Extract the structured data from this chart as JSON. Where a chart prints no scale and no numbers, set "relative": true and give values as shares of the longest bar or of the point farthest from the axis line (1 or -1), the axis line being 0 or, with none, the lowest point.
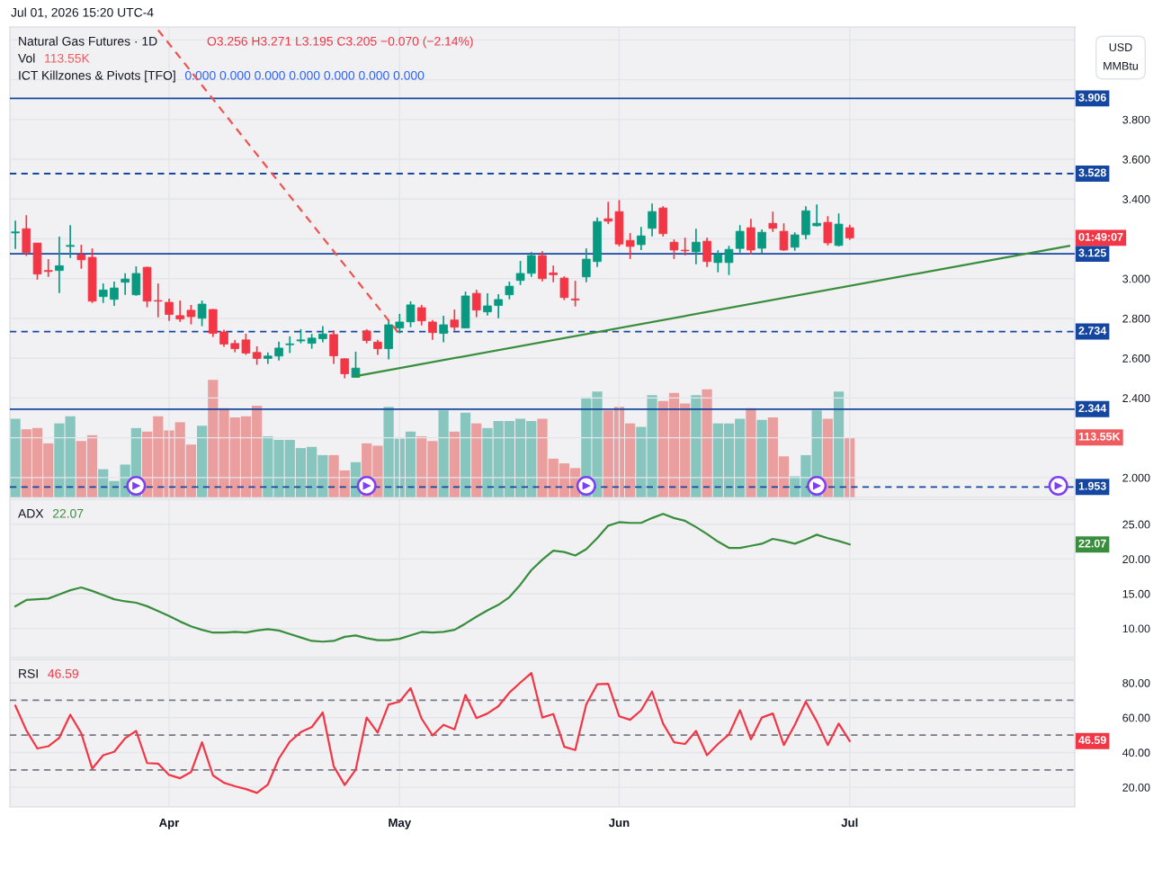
{
  "chart_data": [
    {
      "type": "candlestick",
      "title": "Natural Gas Futures · 1D",
      "ylabel": "USD\nMMBtu",
      "categories": [
        null,
        null,
        null,
        null,
        null,
        null,
        null,
        null,
        null,
        null,
        null,
        null,
        null,
        null,
        null,
        null,
        null,
        null,
        null,
        null,
        null,
        null,
        null,
        null,
        null,
        null,
        null,
        null,
        null,
        null,
        null,
        null,
        null,
        null,
        null,
        null,
        null,
        null,
        null,
        null,
        null,
        null,
        null,
        null,
        null,
        null,
        null,
        null,
        null,
        null,
        null,
        null,
        null,
        null,
        null,
        null,
        null,
        null,
        null,
        null,
        null,
        null,
        null,
        null,
        null,
        null,
        null,
        null,
        null,
        null,
        null,
        null,
        null,
        null,
        null,
        null,
        null,
        null,
        null,
        null,
        null,
        null,
        null,
        null,
        null,
        null,
        null,
        null,
        null,
        null,
        null,
        null,
        null,
        null,
        null,
        null,
        null
      ],
      "ohlc": [
        [
          3.23,
          3.292,
          3.149,
          3.235
        ],
        [
          3.251,
          3.319,
          3.114,
          3.131
        ],
        [
          3.179,
          3.18,
          2.995,
          3.023
        ],
        [
          3.041,
          3.098,
          3.009,
          3.036
        ],
        [
          3.041,
          3.211,
          2.928,
          3.065
        ],
        [
          3.162,
          3.269,
          3.104,
          3.167
        ],
        [
          3.119,
          3.17,
          3.05,
          3.095
        ],
        [
          3.107,
          3.152,
          2.878,
          2.887
        ],
        [
          2.91,
          2.976,
          2.878,
          2.943
        ],
        [
          2.896,
          2.985,
          2.863,
          2.953
        ],
        [
          2.982,
          3.027,
          2.919,
          2.998
        ],
        [
          2.919,
          3.062,
          2.914,
          3.026
        ],
        [
          3.057,
          3.06,
          2.856,
          2.887
        ],
        [
          2.89,
          2.976,
          2.806,
          2.887
        ],
        [
          2.881,
          2.899,
          2.788,
          2.82
        ],
        [
          2.814,
          2.89,
          2.783,
          2.797
        ],
        [
          2.841,
          2.868,
          2.77,
          2.809
        ],
        [
          2.801,
          2.89,
          2.761,
          2.872
        ],
        [
          2.845,
          2.847,
          2.707,
          2.725
        ],
        [
          2.732,
          2.743,
          2.657,
          2.671
        ],
        [
          2.674,
          2.692,
          2.63,
          2.648
        ],
        [
          2.692,
          2.723,
          2.617,
          2.626
        ],
        [
          2.629,
          2.66,
          2.567,
          2.599
        ],
        [
          2.599,
          2.629,
          2.571,
          2.611
        ],
        [
          2.611,
          2.683,
          2.588,
          2.651
        ],
        [
          2.668,
          2.71,
          2.626,
          2.672
        ],
        [
          2.687,
          2.746,
          2.675,
          2.692
        ],
        [
          2.675,
          2.722,
          2.648,
          2.701
        ],
        [
          2.698,
          2.762,
          2.68,
          2.722
        ],
        [
          2.719,
          2.74,
          2.571,
          2.612
        ],
        [
          2.597,
          2.6,
          2.499,
          2.522
        ],
        [
          2.504,
          2.633,
          2.503,
          2.55
        ],
        [
          2.737,
          2.746,
          2.675,
          2.689
        ],
        [
          2.681,
          2.693,
          2.617,
          2.648
        ],
        [
          2.648,
          2.795,
          2.594,
          2.768
        ],
        [
          2.752,
          2.823,
          2.725,
          2.782
        ],
        [
          2.783,
          2.886,
          2.756,
          2.868
        ],
        [
          2.854,
          2.868,
          2.765,
          2.788
        ],
        [
          2.782,
          2.792,
          2.693,
          2.729
        ],
        [
          2.725,
          2.814,
          2.68,
          2.768
        ],
        [
          2.792,
          2.845,
          2.738,
          2.756
        ],
        [
          2.752,
          2.935,
          2.75,
          2.913
        ],
        [
          2.926,
          2.944,
          2.806,
          2.842
        ],
        [
          2.833,
          2.926,
          2.815,
          2.863
        ],
        [
          2.865,
          2.922,
          2.801,
          2.895
        ],
        [
          2.919,
          2.985,
          2.896,
          2.962
        ],
        [
          2.991,
          3.089,
          2.968,
          3.026
        ],
        [
          3.027,
          3.134,
          3.009,
          3.116
        ],
        [
          3.116,
          3.138,
          2.986,
          3.0
        ],
        [
          3.029,
          3.066,
          2.982,
          3.02
        ],
        [
          3.003,
          3.012,
          2.892,
          2.905
        ],
        [
          2.898,
          2.989,
          2.86,
          2.893
        ],
        [
          3.009,
          3.152,
          2.982,
          3.098
        ],
        [
          3.086,
          3.307,
          3.059,
          3.287
        ],
        [
          3.301,
          3.386,
          3.275,
          3.289
        ],
        [
          3.337,
          3.395,
          3.162,
          3.174
        ],
        [
          3.192,
          3.229,
          3.099,
          3.162
        ],
        [
          3.171,
          3.26,
          3.144,
          3.215
        ],
        [
          3.253,
          3.377,
          3.212,
          3.337
        ],
        [
          3.355,
          3.364,
          3.212,
          3.226
        ],
        [
          3.183,
          3.197,
          3.099,
          3.144
        ],
        [
          3.143,
          3.206,
          3.117,
          3.14
        ],
        [
          3.135,
          3.251,
          3.072,
          3.183
        ],
        [
          3.188,
          3.206,
          3.059,
          3.086
        ],
        [
          3.081,
          3.143,
          3.032,
          3.12
        ],
        [
          3.081,
          3.165,
          3.018,
          3.147
        ],
        [
          3.152,
          3.269,
          3.131,
          3.238
        ],
        [
          3.256,
          3.301,
          3.122,
          3.144
        ],
        [
          3.153,
          3.247,
          3.126,
          3.233
        ],
        [
          3.278,
          3.337,
          3.235,
          3.253
        ],
        [
          3.238,
          3.278,
          3.14,
          3.144
        ],
        [
          3.158,
          3.233,
          3.14,
          3.22
        ],
        [
          3.221,
          3.364,
          3.198,
          3.341
        ],
        [
          3.266,
          3.373,
          3.262,
          3.278
        ],
        [
          3.283,
          3.314,
          3.167,
          3.18
        ],
        [
          3.167,
          3.328,
          3.162,
          3.274
        ],
        [
          3.256,
          3.271,
          3.195,
          3.205
        ],
        null,
        null,
        null,
        null,
        null,
        null,
        null,
        null,
        null,
        null,
        null,
        null,
        null,
        null,
        null,
        null,
        null,
        null,
        null,
        null
      ],
      "colors": [
        "#089981",
        "#f23645",
        "#f23645",
        "#f23645",
        "#089981",
        "#089981",
        "#f23645",
        "#f23645",
        "#089981",
        "#089981",
        "#089981",
        "#089981",
        "#f23645",
        "#f23645",
        "#f23645",
        "#f23645",
        "#f23645",
        "#089981",
        "#f23645",
        "#f23645",
        "#f23645",
        "#f23645",
        "#f23645",
        "#089981",
        "#089981",
        "#089981",
        "#089981",
        "#089981",
        "#089981",
        "#f23645",
        "#f23645",
        "#089981",
        "#f23645",
        "#f23645",
        "#089981",
        "#089981",
        "#089981",
        "#f23645",
        "#f23645",
        "#089981",
        "#f23645",
        "#089981",
        "#f23645",
        "#089981",
        "#089981",
        "#089981",
        "#089981",
        "#089981",
        "#f23645",
        "#f23645",
        "#f23645",
        "#f23645",
        "#089981",
        "#089981",
        "#f23645",
        "#f23645",
        "#f23645",
        "#089981",
        "#089981",
        "#f23645",
        "#f23645",
        "#f23645",
        "#089981",
        "#f23645",
        "#089981",
        "#089981",
        "#089981",
        "#f23645",
        "#089981",
        "#f23645",
        "#f23645",
        "#089981",
        "#089981",
        "#089981",
        "#f23645",
        "#089981",
        "#f23645",
        null,
        null,
        null,
        null,
        null,
        null,
        null,
        null,
        null,
        null,
        null,
        null,
        null,
        null,
        null,
        null,
        null,
        null,
        null,
        null
      ],
      "series": [
        {
          "type": "line",
          "color": "#ef5350",
          "line_style": "dashed",
          "values": [
            null,
            null,
            null,
            null,
            null,
            null,
            null,
            null,
            null,
            null,
            null,
            null,
            null,
            4.25,
            null,
            null,
            null,
            null,
            null,
            null,
            null,
            null,
            null,
            null,
            null,
            null,
            null,
            null,
            null,
            null,
            null,
            null,
            null,
            null,
            null,
            2.72,
            null,
            null,
            null,
            null,
            null,
            null,
            null,
            null,
            null,
            null,
            null,
            null,
            null,
            null,
            null,
            null,
            null,
            null,
            null,
            null,
            null,
            null,
            null,
            null,
            null,
            null,
            null,
            null,
            null,
            null,
            null,
            null,
            null,
            null,
            null,
            null,
            null,
            null,
            null,
            null,
            null,
            null,
            null,
            null,
            null,
            null,
            null,
            null,
            null,
            null,
            null,
            null,
            null,
            null,
            null,
            null,
            null,
            null,
            null,
            null,
            null
          ]
        },
        {
          "type": "line",
          "color": "#388e3c",
          "line_style": "solid",
          "values": [
            null,
            null,
            null,
            null,
            null,
            null,
            null,
            null,
            null,
            null,
            null,
            null,
            null,
            null,
            null,
            null,
            null,
            null,
            null,
            null,
            null,
            null,
            null,
            null,
            null,
            null,
            null,
            null,
            null,
            null,
            null,
            2.51,
            null,
            null,
            null,
            null,
            null,
            null,
            null,
            null,
            null,
            null,
            null,
            null,
            null,
            null,
            null,
            null,
            null,
            null,
            null,
            null,
            null,
            null,
            null,
            null,
            null,
            null,
            null,
            null,
            null,
            null,
            null,
            null,
            null,
            null,
            null,
            null,
            null,
            null,
            null,
            null,
            null,
            null,
            null,
            null,
            null,
            null,
            null,
            null,
            null,
            null,
            null,
            null,
            null,
            null,
            null,
            null,
            null,
            null,
            null,
            null,
            null,
            null,
            null,
            null,
            3.165
          ]
        }
      ],
      "ylim": [
        1.9,
        4.265
      ],
      "yticks": [
        {
          "value": 2.0,
          "label": "2.000"
        },
        {
          "value": 2.2,
          "label": null
        },
        {
          "value": 2.4,
          "label": "2.400"
        },
        {
          "value": 2.6,
          "label": "2.600"
        },
        {
          "value": 2.8,
          "label": "2.800"
        },
        {
          "value": 3.0,
          "label": "3.000"
        },
        {
          "value": 3.2,
          "label": null
        },
        {
          "value": 3.4,
          "label": "3.400"
        },
        {
          "value": 3.6,
          "label": "3.600"
        },
        {
          "value": 3.8,
          "label": "3.800"
        },
        {
          "value": 4.0,
          "label": null
        },
        {
          "value": 4.2,
          "label": null
        }
      ],
      "tick_labels": "y",
      "grid": true,
      "ref_lines": [
        {
          "axis": "y",
          "value": 3.906,
          "label": "3.906",
          "color": "#1546a0",
          "line_style": "solid"
        },
        {
          "axis": "y",
          "value": 3.528,
          "label": "3.528",
          "color": "#1546a0",
          "line_style": "dashed"
        },
        {
          "axis": "y",
          "value": 3.125,
          "label": "3.125",
          "color": "#1546a0",
          "line_style": "solid"
        },
        {
          "axis": "y",
          "value": 2.734,
          "label": "2.734",
          "color": "#1546a0",
          "line_style": "dashed"
        },
        {
          "axis": "y",
          "value": 2.344,
          "label": "2.344",
          "color": "#1546a0",
          "line_style": "solid"
        },
        {
          "axis": "y",
          "value": 1.953,
          "label": "1.953",
          "color": "#1546a0",
          "line_style": "dashed"
        }
      ],
      "annotations": [
        "O3.256 H3.271 L3.195 C3.205 −0.070 (−2.14%)",
        "ICT Killzones & Pivots [TFO]",
        "0.000 0.000 0.000 0.000 0.000 0.000 0.000",
        "Jul 01, 2026 15:20 UTC-4",
        "01:49:07"
      ]
    },
    {
      "type": "bar",
      "title": "Vol",
      "relative": true,
      "categories": [
        null,
        null,
        null,
        null,
        null,
        null,
        null,
        null,
        null,
        null,
        null,
        null,
        null,
        null,
        null,
        null,
        null,
        null,
        null,
        null,
        null,
        null,
        null,
        null,
        null,
        null,
        null,
        null,
        null,
        null,
        null,
        null,
        null,
        null,
        null,
        null,
        null,
        null,
        null,
        null,
        null,
        null,
        null,
        null,
        null,
        null,
        null,
        null,
        null,
        null,
        null,
        null,
        null,
        null,
        null,
        null,
        null,
        null,
        null,
        null,
        null,
        null,
        null,
        null,
        null,
        null,
        null,
        null,
        null,
        null,
        null,
        null,
        null,
        null,
        null,
        null,
        null,
        null,
        null,
        null,
        null,
        null,
        null,
        null,
        null,
        null,
        null,
        null,
        null,
        null,
        null,
        null,
        null,
        null,
        null,
        null,
        null
      ],
      "values": [
        0.67,
        0.58,
        0.59,
        0.46,
        0.63,
        0.69,
        0.48,
        0.53,
        0.24,
        0.14,
        0.28,
        0.59,
        0.56,
        0.69,
        0.57,
        0.64,
        0.45,
        0.61,
        1,
        0.76,
        0.68,
        0.69,
        0.78,
        0.52,
        0.49,
        0.49,
        0.42,
        0.43,
        0.36,
        0.36,
        0.23,
        0.3,
        0.46,
        0.44,
        0.77,
        0.5,
        0.56,
        0.52,
        0.48,
        0.74,
        0.56,
        0.72,
        0.63,
        0.59,
        0.65,
        0.65,
        0.67,
        0.65,
        0.67,
        0.33,
        0.29,
        0.25,
        0.85,
        0.9,
        0.74,
        0.77,
        0.63,
        0.6,
        0.87,
        0.82,
        0.89,
        0.8,
        0.87,
        0.92,
        0.63,
        0.63,
        0.67,
        0.76,
        0.66,
        0.68,
        0.35,
        0.18,
        0.36,
        0.74,
        0.67,
        0.9,
        0.51,
        null,
        null,
        null,
        null,
        null,
        null,
        null,
        null,
        null,
        null,
        null,
        null,
        null,
        null,
        null,
        null,
        null,
        null,
        null,
        null
      ],
      "colors": [
        "#86c6be",
        "#eb9e9e",
        "#eb9e9e",
        "#eb9e9e",
        "#86c6be",
        "#86c6be",
        "#eb9e9e",
        "#eb9e9e",
        "#86c6be",
        "#86c6be",
        "#86c6be",
        "#86c6be",
        "#eb9e9e",
        "#eb9e9e",
        "#eb9e9e",
        "#eb9e9e",
        "#eb9e9e",
        "#86c6be",
        "#eb9e9e",
        "#eb9e9e",
        "#eb9e9e",
        "#eb9e9e",
        "#eb9e9e",
        "#86c6be",
        "#86c6be",
        "#86c6be",
        "#86c6be",
        "#86c6be",
        "#86c6be",
        "#eb9e9e",
        "#eb9e9e",
        "#86c6be",
        "#eb9e9e",
        "#eb9e9e",
        "#86c6be",
        "#86c6be",
        "#86c6be",
        "#eb9e9e",
        "#eb9e9e",
        "#86c6be",
        "#eb9e9e",
        "#86c6be",
        "#eb9e9e",
        "#86c6be",
        "#86c6be",
        "#86c6be",
        "#86c6be",
        "#86c6be",
        "#eb9e9e",
        "#eb9e9e",
        "#eb9e9e",
        "#eb9e9e",
        "#86c6be",
        "#86c6be",
        "#eb9e9e",
        "#eb9e9e",
        "#eb9e9e",
        "#86c6be",
        "#86c6be",
        "#eb9e9e",
        "#eb9e9e",
        "#eb9e9e",
        "#86c6be",
        "#eb9e9e",
        "#86c6be",
        "#86c6be",
        "#86c6be",
        "#eb9e9e",
        "#86c6be",
        "#eb9e9e",
        "#eb9e9e",
        "#86c6be",
        "#86c6be",
        "#86c6be",
        "#eb9e9e",
        "#86c6be",
        "#eb9e9e",
        null,
        null,
        null,
        null,
        null,
        null,
        null,
        null,
        null,
        null,
        null,
        null,
        null,
        null,
        null,
        null,
        null,
        null,
        null,
        null
      ],
      "tick_labels": false,
      "annotations": [
        "113.55K",
        "113.55K"
      ]
    },
    {
      "type": "line",
      "title": "ADX",
      "categories": [
        null,
        null,
        null,
        null,
        null,
        null,
        null,
        null,
        null,
        null,
        null,
        null,
        null,
        null,
        null,
        null,
        null,
        null,
        null,
        null,
        null,
        null,
        null,
        null,
        null,
        null,
        null,
        null,
        null,
        null,
        null,
        null,
        null,
        null,
        null,
        null,
        null,
        null,
        null,
        null,
        null,
        null,
        null,
        null,
        null,
        null,
        null,
        null,
        null,
        null,
        null,
        null,
        null,
        null,
        null,
        null,
        null,
        null,
        null,
        null,
        null,
        null,
        null,
        null,
        null,
        null,
        null,
        null,
        null,
        null,
        null,
        null,
        null,
        null,
        null,
        null,
        null,
        null,
        null,
        null,
        null,
        null,
        null,
        null,
        null,
        null,
        null,
        null,
        null,
        null,
        null,
        null,
        null,
        null,
        null,
        null,
        null
      ],
      "series": [
        {
          "color": "#388e3c",
          "values": [
            13.2,
            14.1,
            14.2,
            14.3,
            14.9,
            15.5,
            15.9,
            15.4,
            14.8,
            14.2,
            13.9,
            13.7,
            13.2,
            12.5,
            11.8,
            11.0,
            10.3,
            9.8,
            9.4,
            9.4,
            9.5,
            9.4,
            9.7,
            9.9,
            9.7,
            9.2,
            8.7,
            8.2,
            8.1,
            8.2,
            8.8,
            9.0,
            8.6,
            8.3,
            8.3,
            8.5,
            9.0,
            9.5,
            9.4,
            9.5,
            9.8,
            10.7,
            11.7,
            12.6,
            13.4,
            14.5,
            16.3,
            18.4,
            19.9,
            21.2,
            21.0,
            20.5,
            21.4,
            23.0,
            24.8,
            25.3,
            25.2,
            25.2,
            25.9,
            26.5,
            25.9,
            25.5,
            24.6,
            23.6,
            22.5,
            21.6,
            21.6,
            21.9,
            22.2,
            22.9,
            22.6,
            22.2,
            22.8,
            23.5,
            23.0,
            22.6,
            22.1,
            null,
            null,
            null,
            null,
            null,
            null,
            null,
            null,
            null,
            null,
            null,
            null,
            null,
            null,
            null,
            null,
            null,
            null,
            null,
            null
          ]
        }
      ],
      "ylim": [
        5.8,
        28.6
      ],
      "yticks": [
        {
          "value": 10,
          "label": "10.00"
        },
        {
          "value": 15,
          "label": "15.00"
        },
        {
          "value": 20,
          "label": "20.00"
        },
        {
          "value": 25,
          "label": "25.00"
        }
      ],
      "tick_labels": "y",
      "grid": true,
      "annotations": [
        "22.07",
        "22.07"
      ]
    },
    {
      "type": "line",
      "title": "RSI",
      "categories": [
        null,
        null,
        null,
        null,
        null,
        null,
        null,
        null,
        null,
        null,
        null,
        null,
        null,
        null,
        "Apr",
        null,
        null,
        null,
        null,
        null,
        null,
        null,
        null,
        null,
        null,
        null,
        null,
        null,
        null,
        null,
        null,
        null,
        null,
        null,
        null,
        "May",
        null,
        null,
        null,
        null,
        null,
        null,
        null,
        null,
        null,
        null,
        null,
        null,
        null,
        null,
        null,
        null,
        null,
        null,
        null,
        "Jun",
        null,
        null,
        null,
        null,
        null,
        null,
        null,
        null,
        null,
        null,
        null,
        null,
        null,
        null,
        null,
        null,
        null,
        null,
        null,
        null,
        "Jul",
        null,
        null,
        null,
        null,
        null,
        null,
        null,
        null,
        null,
        null,
        null,
        null,
        null,
        null,
        null,
        null,
        null,
        null,
        null,
        null
      ],
      "series": [
        {
          "color": "#f23645",
          "values": [
            66.9,
            52.7,
            42.3,
            43.6,
            48.5,
            61.7,
            51.1,
            30.7,
            38.4,
            40.4,
            48.2,
            52.4,
            33.9,
            33.6,
            27.1,
            25.2,
            28.7,
            45.9,
            26.8,
            22.6,
            20.6,
            19.0,
            16.8,
            21.6,
            36.5,
            46.2,
            51.7,
            54.6,
            63.0,
            32.0,
            21.3,
            30.1,
            60.1,
            51.4,
            67.6,
            69.2,
            77.0,
            59.5,
            49.8,
            55.9,
            53.3,
            73.1,
            59.8,
            62.4,
            66.6,
            74.4,
            80.2,
            85.7,
            60.1,
            62.1,
            43.3,
            41.4,
            67.6,
            79.2,
            79.5,
            60.8,
            58.8,
            64.3,
            75.0,
            56.6,
            45.9,
            44.9,
            52.4,
            38.4,
            44.9,
            50.4,
            64.3,
            47.5,
            60.1,
            62.4,
            44.3,
            55.9,
            69.2,
            57.9,
            44.3,
            56.6,
            46.6,
            null,
            null,
            null,
            null,
            null,
            null,
            null,
            null,
            null,
            null,
            null,
            null,
            null,
            null,
            null,
            null,
            null,
            null,
            null,
            null
          ]
        }
      ],
      "ylim": [
        8.7,
        93.5
      ],
      "yticks": [
        {
          "value": 20,
          "label": "20.00"
        },
        {
          "value": 40,
          "label": "40.00"
        },
        {
          "value": 60,
          "label": "60.00"
        },
        {
          "value": 80,
          "label": "80.00"
        }
      ],
      "grid": true,
      "ref_lines": [
        {
          "axis": "y",
          "value": 70,
          "color": "#787b86",
          "line_style": "dashed"
        },
        {
          "axis": "y",
          "value": 50,
          "color": "#787b86",
          "line_style": "dashed"
        },
        {
          "axis": "y",
          "value": 30,
          "color": "#787b86",
          "line_style": "dashed"
        }
      ],
      "annotations": [
        "46.59",
        "46.59"
      ]
    }
  ]
}
